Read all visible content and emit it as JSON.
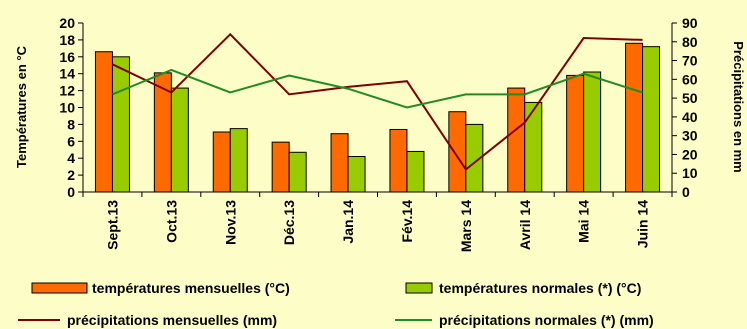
{
  "chart_data": {
    "type": "bar",
    "categories": [
      "Sept.13",
      "Oct.13",
      "Nov.13",
      "Déc.13",
      "Jan.14",
      "Fév.14",
      "Mars 14",
      "Avril 14",
      "Mai 14",
      "Juin 14"
    ],
    "series": [
      {
        "name": "températures mensuelles (°C)",
        "type": "bar",
        "axis": "left",
        "color": "#ff6a00",
        "values": [
          16.6,
          14.1,
          7.1,
          5.9,
          6.9,
          7.4,
          9.5,
          12.3,
          13.8,
          17.6
        ]
      },
      {
        "name": "températures normales (*) (°C)",
        "type": "bar",
        "axis": "left",
        "color": "#99cc00",
        "values": [
          16.0,
          12.3,
          7.5,
          4.7,
          4.2,
          4.8,
          8.0,
          10.6,
          14.2,
          17.2
        ]
      },
      {
        "name": "précipitations mensuelles (mm)",
        "type": "line",
        "axis": "right",
        "color": "#800000",
        "values": [
          68,
          53,
          84,
          52,
          56,
          59,
          12,
          37,
          82,
          81
        ]
      },
      {
        "name": "précipitations normales (*)  (mm)",
        "type": "line",
        "axis": "right",
        "color": "#228b22",
        "values": [
          52,
          65,
          53,
          62,
          55,
          45,
          52,
          52,
          63,
          53
        ]
      }
    ],
    "ylabel_left": "Températures en °C",
    "ylabel_right": "Précipitations en mm",
    "ylim_left": [
      0,
      20
    ],
    "ylim_right": [
      0,
      90
    ],
    "yticks_left": [
      "0",
      "2",
      "4",
      "6",
      "8",
      "10",
      "12",
      "14",
      "16",
      "18",
      "20"
    ],
    "yticks_right": [
      "0",
      "10",
      "20",
      "30",
      "40",
      "50",
      "60",
      "70",
      "80",
      "90"
    ],
    "grid": false,
    "legend_position": "bottom"
  }
}
